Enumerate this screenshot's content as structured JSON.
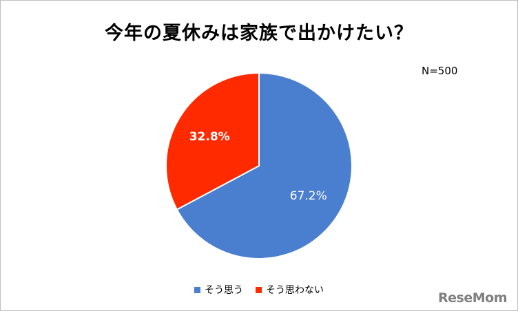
{
  "title": "今年の夏休みは家族で出かけたい？",
  "note": "N=500",
  "brand": "ReseMom",
  "colors": {
    "series_0": "#4a7fd0",
    "series_1": "#ff2a00",
    "background": "#ffffff",
    "border": "#bfbfbf"
  },
  "chart_data": {
    "type": "pie",
    "title": "今年の夏休みは家族で出かけたい？",
    "categories": [
      "そう思う",
      "そう思わない"
    ],
    "values": [
      67.2,
      32.8
    ],
    "data_labels": [
      "67.2%",
      "32.8%"
    ],
    "legend_position": "bottom",
    "start_angle": "12 o'clock",
    "direction": "clockwise"
  }
}
